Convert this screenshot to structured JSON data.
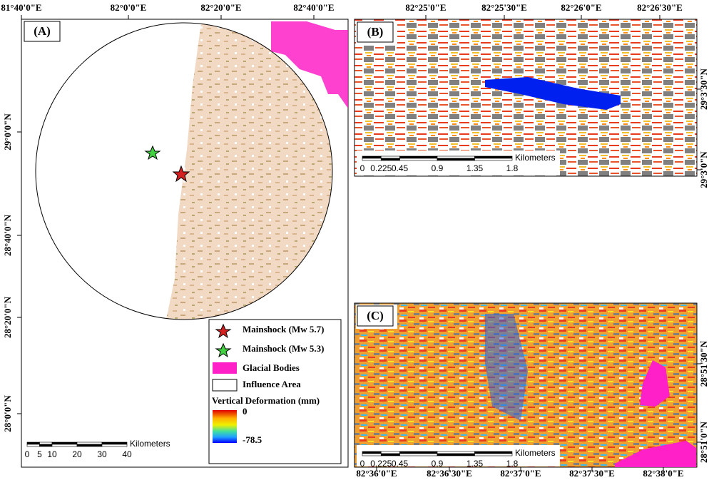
{
  "panel_a": {
    "label": "(A)",
    "top_ticks": [
      "81°40'0\"E",
      "82°0'0\"E",
      "82°20'0\"E",
      "82°40'0\"E"
    ],
    "left_ticks": [
      "29°0'0\"N",
      "28°40'0\"N",
      "28°20'0\"N",
      "28°0'0\"N"
    ],
    "scale": {
      "unit": "Kilometers",
      "ticks": [
        "0",
        "5",
        "10",
        "20",
        "30",
        "40"
      ]
    },
    "legend": {
      "items": [
        "Mainshock (Mw 5.7)",
        "Mainshock (Mw 5.3)",
        "Glacial Bodies",
        "Influence Area"
      ],
      "deformation_title": "Vertical Deformation (mm)",
      "high": "0",
      "low": "-78.5"
    }
  },
  "panel_b": {
    "label": "(B)",
    "top_ticks": [
      "82°25'0\"E",
      "82°25'30\"E",
      "82°26'0\"E",
      "82°26'30\"E"
    ],
    "right_ticks": [
      "29°3'30\"N",
      "29°3'0\"N"
    ],
    "scale": {
      "unit": "Kilometers",
      "ticks": [
        "0",
        "0.225",
        "0.45",
        "0.9",
        "1.35",
        "1.8"
      ]
    }
  },
  "panel_c": {
    "label": "(C)",
    "bottom_ticks": [
      "82°36'0\"E",
      "82°36'30\"E",
      "82°37'0\"E",
      "82°37'30\"E",
      "82°38'0\"E"
    ],
    "right_ticks": [
      "28°51'30\"N",
      "28°51'0\"N"
    ],
    "scale": {
      "unit": "Kilometers",
      "ticks": [
        "0",
        "0.225",
        "0.45",
        "0.9",
        "1.35",
        "1.8"
      ]
    }
  }
}
